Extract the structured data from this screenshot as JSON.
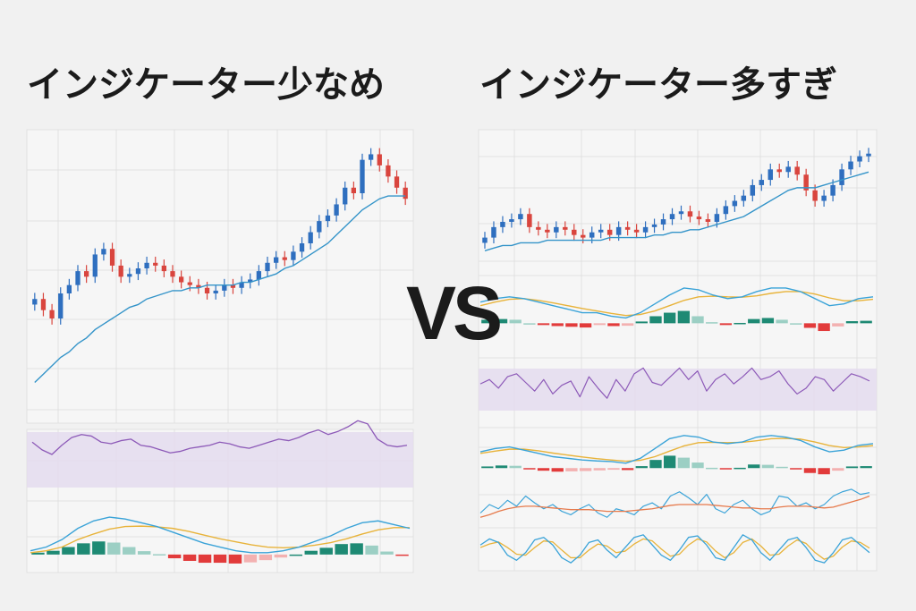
{
  "left": {
    "title": "インジケーター少なめ"
  },
  "right": {
    "title": "インジケーター多すぎ"
  },
  "vs": "VS",
  "colors": {
    "up": "#2f6fbf",
    "down": "#d9453e",
    "ma": "#3494c9",
    "rsi": "#8d5ab8",
    "rsi_band": "#e4dcee",
    "macd_line": "#3aa3d8",
    "signal_line": "#e8b33a",
    "hist_pos_strong": "#1e8a74",
    "hist_pos_weak": "#9ccfc4",
    "hist_neg_strong": "#e23b3b",
    "hist_neg_weak": "#f3b1b1",
    "osc_orange": "#e67a4c"
  },
  "chart_data": [
    {
      "type": "candlestick",
      "panel": "left-price",
      "close": [
        50,
        46,
        43,
        52,
        55,
        60,
        58,
        66,
        68,
        62,
        58,
        59,
        61,
        63,
        62,
        60,
        58,
        56,
        55,
        54,
        52,
        53,
        55,
        54,
        56,
        57,
        60,
        63,
        65,
        64,
        67,
        70,
        74,
        78,
        80,
        84,
        90,
        88,
        100,
        102,
        98,
        94,
        90,
        86
      ],
      "ma": [
        20,
        23,
        26,
        29,
        31,
        34,
        36,
        39,
        41,
        43,
        45,
        47,
        48,
        50,
        51,
        52,
        53,
        53,
        54,
        54,
        55,
        55,
        55,
        55,
        56,
        56,
        57,
        58,
        59,
        61,
        62,
        64,
        66,
        68,
        70,
        73,
        76,
        79,
        82,
        84,
        86,
        87,
        87,
        87
      ]
    },
    {
      "type": "line",
      "panel": "left-rsi",
      "values": [
        60,
        55,
        52,
        58,
        63,
        65,
        64,
        60,
        59,
        61,
        62,
        58,
        57,
        55,
        53,
        54,
        56,
        57,
        58,
        60,
        59,
        57,
        56,
        58,
        60,
        62,
        61,
        63,
        66,
        68,
        65,
        67,
        70,
        74,
        72,
        62,
        58,
        57,
        58
      ]
    },
    {
      "type": "macd",
      "panel": "left-macd",
      "macd": [
        0.1,
        0.2,
        0.4,
        0.7,
        0.9,
        1.0,
        0.95,
        0.85,
        0.75,
        0.6,
        0.45,
        0.3,
        0.2,
        0.1,
        0.05,
        0.05,
        0.1,
        0.2,
        0.35,
        0.5,
        0.7,
        0.85,
        0.9,
        0.8,
        0.7
      ],
      "signal": [
        0.05,
        0.1,
        0.2,
        0.4,
        0.55,
        0.68,
        0.75,
        0.76,
        0.74,
        0.7,
        0.62,
        0.52,
        0.42,
        0.34,
        0.26,
        0.2,
        0.18,
        0.2,
        0.25,
        0.32,
        0.42,
        0.55,
        0.66,
        0.72,
        0.72
      ],
      "hist": [
        0.05,
        0.1,
        0.2,
        0.3,
        0.35,
        0.32,
        0.2,
        0.09,
        0.01,
        -0.1,
        -0.17,
        -0.22,
        -0.22,
        -0.24,
        -0.21,
        -0.15,
        -0.08,
        0.0,
        0.1,
        0.18,
        0.28,
        0.3,
        0.24,
        0.08,
        -0.02
      ]
    },
    {
      "type": "candlestick",
      "panel": "right-price",
      "close": [
        70,
        74,
        76,
        77,
        79,
        74,
        73,
        72,
        74,
        73,
        71,
        70,
        72,
        73,
        71,
        74,
        73,
        72,
        74,
        75,
        77,
        79,
        80,
        78,
        77,
        76,
        79,
        82,
        84,
        86,
        90,
        92,
        96,
        95,
        97,
        94,
        88,
        84,
        86,
        90,
        96,
        99,
        101,
        102
      ],
      "ma": [
        65,
        66,
        67,
        67,
        68,
        68,
        68,
        69,
        69,
        69,
        69,
        69,
        69,
        69,
        70,
        70,
        70,
        70,
        70,
        71,
        71,
        72,
        72,
        73,
        73,
        74,
        75,
        76,
        77,
        78,
        80,
        82,
        84,
        86,
        88,
        89,
        89,
        89,
        90,
        91,
        92,
        93,
        94,
        95
      ]
    },
    {
      "type": "macd",
      "panel": "right-macd-1",
      "macd": [
        0.6,
        0.7,
        0.75,
        0.7,
        0.6,
        0.5,
        0.4,
        0.3,
        0.3,
        0.2,
        0.15,
        0.3,
        0.55,
        0.8,
        1.0,
        0.95,
        0.8,
        0.7,
        0.75,
        0.9,
        1.0,
        1.0,
        0.9,
        0.7,
        0.5,
        0.55,
        0.7,
        0.75
      ],
      "signal": [
        0.5,
        0.6,
        0.68,
        0.7,
        0.65,
        0.58,
        0.5,
        0.42,
        0.35,
        0.28,
        0.22,
        0.25,
        0.35,
        0.5,
        0.65,
        0.75,
        0.77,
        0.75,
        0.74,
        0.78,
        0.85,
        0.9,
        0.9,
        0.83,
        0.72,
        0.64,
        0.64,
        0.68
      ],
      "hist": [
        0.1,
        0.12,
        0.1,
        0.0,
        -0.05,
        -0.08,
        -0.1,
        -0.12,
        -0.05,
        -0.08,
        -0.07,
        0.05,
        0.2,
        0.3,
        0.35,
        0.2,
        0.03,
        -0.05,
        0.01,
        0.12,
        0.15,
        0.1,
        0.0,
        -0.13,
        -0.22,
        -0.09,
        0.06,
        0.07
      ]
    },
    {
      "type": "line",
      "panel": "right-rsi",
      "values": [
        55,
        58,
        52,
        60,
        62,
        56,
        50,
        58,
        48,
        54,
        57,
        46,
        60,
        52,
        45,
        58,
        50,
        62,
        66,
        56,
        54,
        60,
        66,
        58,
        64,
        50,
        58,
        62,
        55,
        60,
        66,
        58,
        60,
        64,
        55,
        48,
        52,
        60,
        58,
        50,
        56,
        62,
        60,
        57
      ]
    },
    {
      "type": "macd",
      "panel": "right-macd-2",
      "macd": [
        0.5,
        0.6,
        0.65,
        0.55,
        0.45,
        0.35,
        0.3,
        0.25,
        0.22,
        0.2,
        0.15,
        0.3,
        0.6,
        0.9,
        1.0,
        0.95,
        0.8,
        0.75,
        0.8,
        0.95,
        1.0,
        0.95,
        0.85,
        0.65,
        0.5,
        0.55,
        0.7,
        0.75
      ],
      "signal": [
        0.45,
        0.52,
        0.58,
        0.58,
        0.53,
        0.46,
        0.4,
        0.34,
        0.29,
        0.25,
        0.21,
        0.24,
        0.35,
        0.52,
        0.68,
        0.78,
        0.79,
        0.78,
        0.79,
        0.84,
        0.9,
        0.91,
        0.89,
        0.8,
        0.69,
        0.63,
        0.65,
        0.69
      ],
      "hist": [
        0.05,
        0.08,
        0.07,
        -0.03,
        -0.08,
        -0.11,
        -0.1,
        -0.09,
        -0.07,
        -0.05,
        -0.06,
        0.06,
        0.25,
        0.38,
        0.32,
        0.17,
        0.01,
        -0.03,
        0.01,
        0.11,
        0.1,
        0.04,
        -0.04,
        -0.15,
        -0.19,
        -0.08,
        0.05,
        0.06
      ]
    },
    {
      "type": "line",
      "panel": "right-osc-1",
      "series": [
        {
          "values": [
            50,
            60,
            55,
            65,
            58,
            70,
            62,
            55,
            60,
            52,
            48,
            55,
            60,
            50,
            45,
            55,
            52,
            48,
            58,
            62,
            55,
            70,
            75,
            68,
            60,
            72,
            55,
            50,
            60,
            65,
            55,
            48,
            52,
            70,
            68,
            58,
            62,
            55,
            60,
            70,
            75,
            78,
            72,
            74
          ]
        },
        {
          "values": [
            45,
            48,
            52,
            55,
            57,
            58,
            58,
            57,
            56,
            55,
            54,
            54,
            54,
            53,
            52,
            52,
            52,
            53,
            54,
            55,
            57,
            59,
            60,
            60,
            60,
            60,
            59,
            58,
            57,
            56,
            56,
            55,
            55,
            57,
            58,
            58,
            58,
            57,
            56,
            57,
            60,
            63,
            66,
            70
          ]
        }
      ]
    },
    {
      "type": "line",
      "panel": "right-osc-2",
      "series": [
        {
          "values": [
            60,
            72,
            65,
            40,
            30,
            45,
            70,
            75,
            60,
            35,
            25,
            40,
            65,
            70,
            50,
            35,
            55,
            75,
            80,
            60,
            40,
            30,
            50,
            75,
            78,
            60,
            35,
            30,
            55,
            80,
            70,
            45,
            30,
            50,
            70,
            75,
            55,
            30,
            25,
            45,
            70,
            75,
            60,
            45
          ]
        },
        {
          "values": [
            55,
            62,
            66,
            55,
            42,
            40,
            55,
            68,
            66,
            50,
            35,
            35,
            50,
            62,
            58,
            45,
            48,
            62,
            72,
            68,
            52,
            38,
            42,
            60,
            72,
            66,
            48,
            35,
            45,
            65,
            72,
            58,
            40,
            42,
            58,
            70,
            63,
            45,
            32,
            38,
            56,
            68,
            65,
            54
          ]
        }
      ]
    }
  ]
}
